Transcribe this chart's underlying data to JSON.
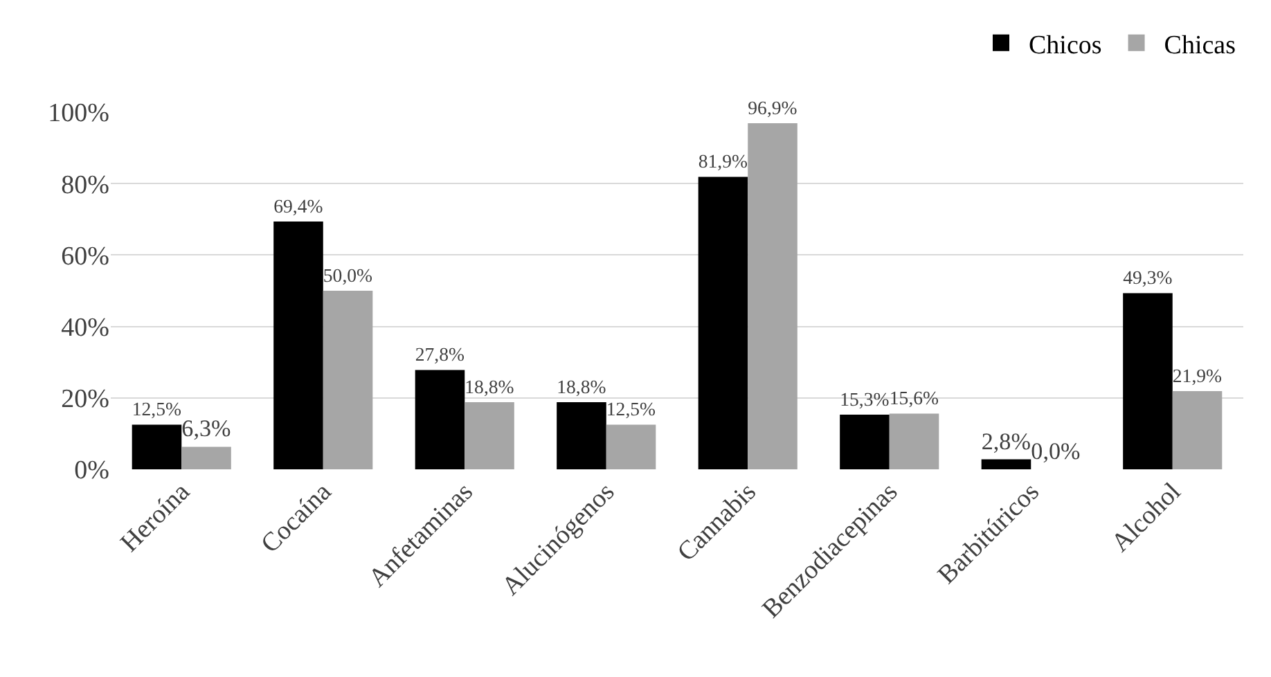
{
  "chart_data": {
    "type": "bar",
    "categories": [
      "Heroína",
      "Cocaína",
      "Anfetaminas",
      "Alucinógenos",
      "Cannabis",
      "Benzodiacepinas",
      "Barbitúricos",
      "Alcohol"
    ],
    "series": [
      {
        "name": "Chicos",
        "color": "#000000",
        "values": [
          12.5,
          69.4,
          27.8,
          18.8,
          81.9,
          15.3,
          2.8,
          49.3
        ],
        "value_labels": [
          "12,5%",
          "69,4%",
          "27,8%",
          "18,8%",
          "81,9%",
          "15,3%",
          "2,8%",
          "49,3%"
        ]
      },
      {
        "name": "Chicas",
        "color": "#a6a6a6",
        "values": [
          6.3,
          50.0,
          18.8,
          12.5,
          96.9,
          15.6,
          0.0,
          21.9
        ],
        "value_labels": [
          "6,3%",
          "50,0%",
          "18,8%",
          "12,5%",
          "96,9%",
          "15,6%",
          "0,0%",
          "21,9%"
        ]
      }
    ],
    "ylim": [
      0,
      100
    ],
    "yticks": [
      {
        "value": 0,
        "label": "0%"
      },
      {
        "value": 20,
        "label": "20%"
      },
      {
        "value": 40,
        "label": "40%"
      },
      {
        "value": 60,
        "label": "60%"
      },
      {
        "value": 80,
        "label": "80%"
      },
      {
        "value": 100,
        "label": "100%"
      }
    ],
    "grid": "y",
    "legend": "top right"
  }
}
